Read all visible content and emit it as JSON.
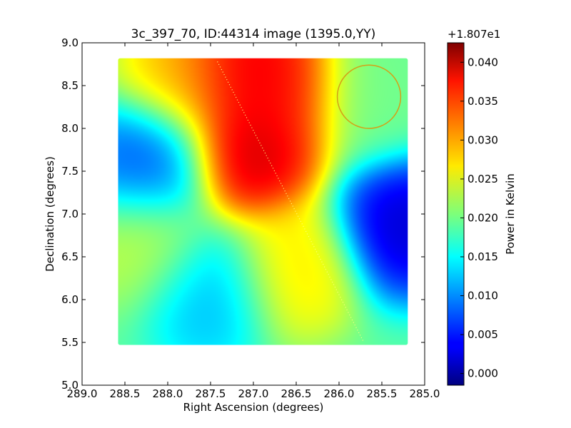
{
  "chart_data": {
    "type": "heatmap",
    "title": "3c_397_70, ID:44314 image (1395.0,YY)",
    "xlabel": "Right Ascension (degrees)",
    "ylabel": "Declination (degrees)",
    "xlim": [
      289.0,
      285.0
    ],
    "ylim": [
      5.0,
      9.0
    ],
    "x_ticks": [
      "289.0",
      "288.5",
      "288.0",
      "287.5",
      "287.0",
      "286.5",
      "286.0",
      "285.5",
      "285.0"
    ],
    "y_ticks": [
      "5.0",
      "5.5",
      "6.0",
      "6.5",
      "7.0",
      "7.5",
      "8.0",
      "8.5",
      "9.0"
    ],
    "map_extent": {
      "ra": [
        288.58,
        285.2
      ],
      "dec": [
        5.47,
        8.82
      ]
    },
    "colorbar": {
      "label": "Power in Kelvin",
      "offset_text": "+1.807e1",
      "range": [
        -0.0015,
        0.0425
      ],
      "colormap": "jet",
      "ticks": [
        "0.000",
        "0.005",
        "0.010",
        "0.015",
        "0.020",
        "0.025",
        "0.030",
        "0.035",
        "0.040"
      ]
    },
    "field_values_blobs": [
      {
        "ra": 287.05,
        "dec": 7.7,
        "value": 0.0415
      },
      {
        "ra": 287.1,
        "dec": 8.72,
        "value": 0.0405
      },
      {
        "ra": 286.7,
        "dec": 8.45,
        "value": 0.037
      },
      {
        "ra": 288.2,
        "dec": 7.6,
        "value": 0.006
      },
      {
        "ra": 285.22,
        "dec": 6.85,
        "value": 0.0
      },
      {
        "ra": 287.5,
        "dec": 6.1,
        "value": 0.011
      },
      {
        "ra": 288.25,
        "dec": 6.65,
        "value": 0.024
      },
      {
        "ra": 286.55,
        "dec": 6.35,
        "value": 0.028
      },
      {
        "ra": 287.8,
        "dec": 8.6,
        "value": 0.03
      },
      {
        "ra": 285.6,
        "dec": 8.4,
        "value": 0.02
      }
    ],
    "overlays": [
      {
        "kind": "circle",
        "color": "#d4a017",
        "ra": 285.65,
        "dec": 8.37,
        "radius_deg": 0.37
      },
      {
        "kind": "dotted-line",
        "color": "#ffff80",
        "points": [
          {
            "ra": 287.42,
            "dec": 8.78
          },
          {
            "ra": 285.72,
            "dec": 5.52
          }
        ]
      }
    ]
  }
}
